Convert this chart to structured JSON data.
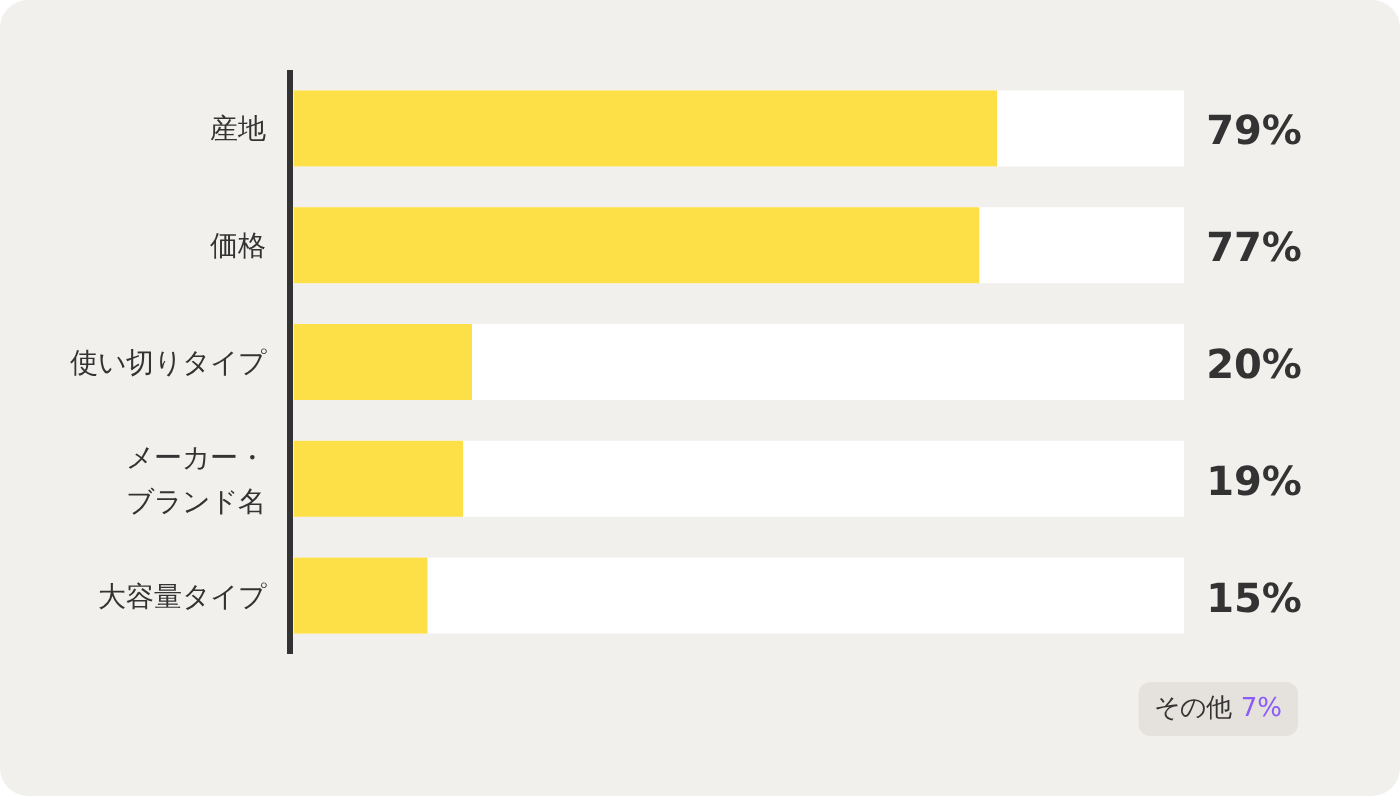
{
  "chart_data": {
    "type": "bar",
    "orientation": "horizontal",
    "categories": [
      "産地",
      "価格",
      "使い切りタイプ",
      "メーカー・ブランド名",
      "大容量タイプ"
    ],
    "values": [
      79,
      77,
      20,
      19,
      15
    ],
    "color": "#fde047",
    "xlim": [
      0,
      100
    ],
    "data_labels": true,
    "value_labels": [
      "79%",
      "77%",
      "20%",
      "19%",
      "15%"
    ],
    "annotations": [
      "その他 7%"
    ]
  }
}
